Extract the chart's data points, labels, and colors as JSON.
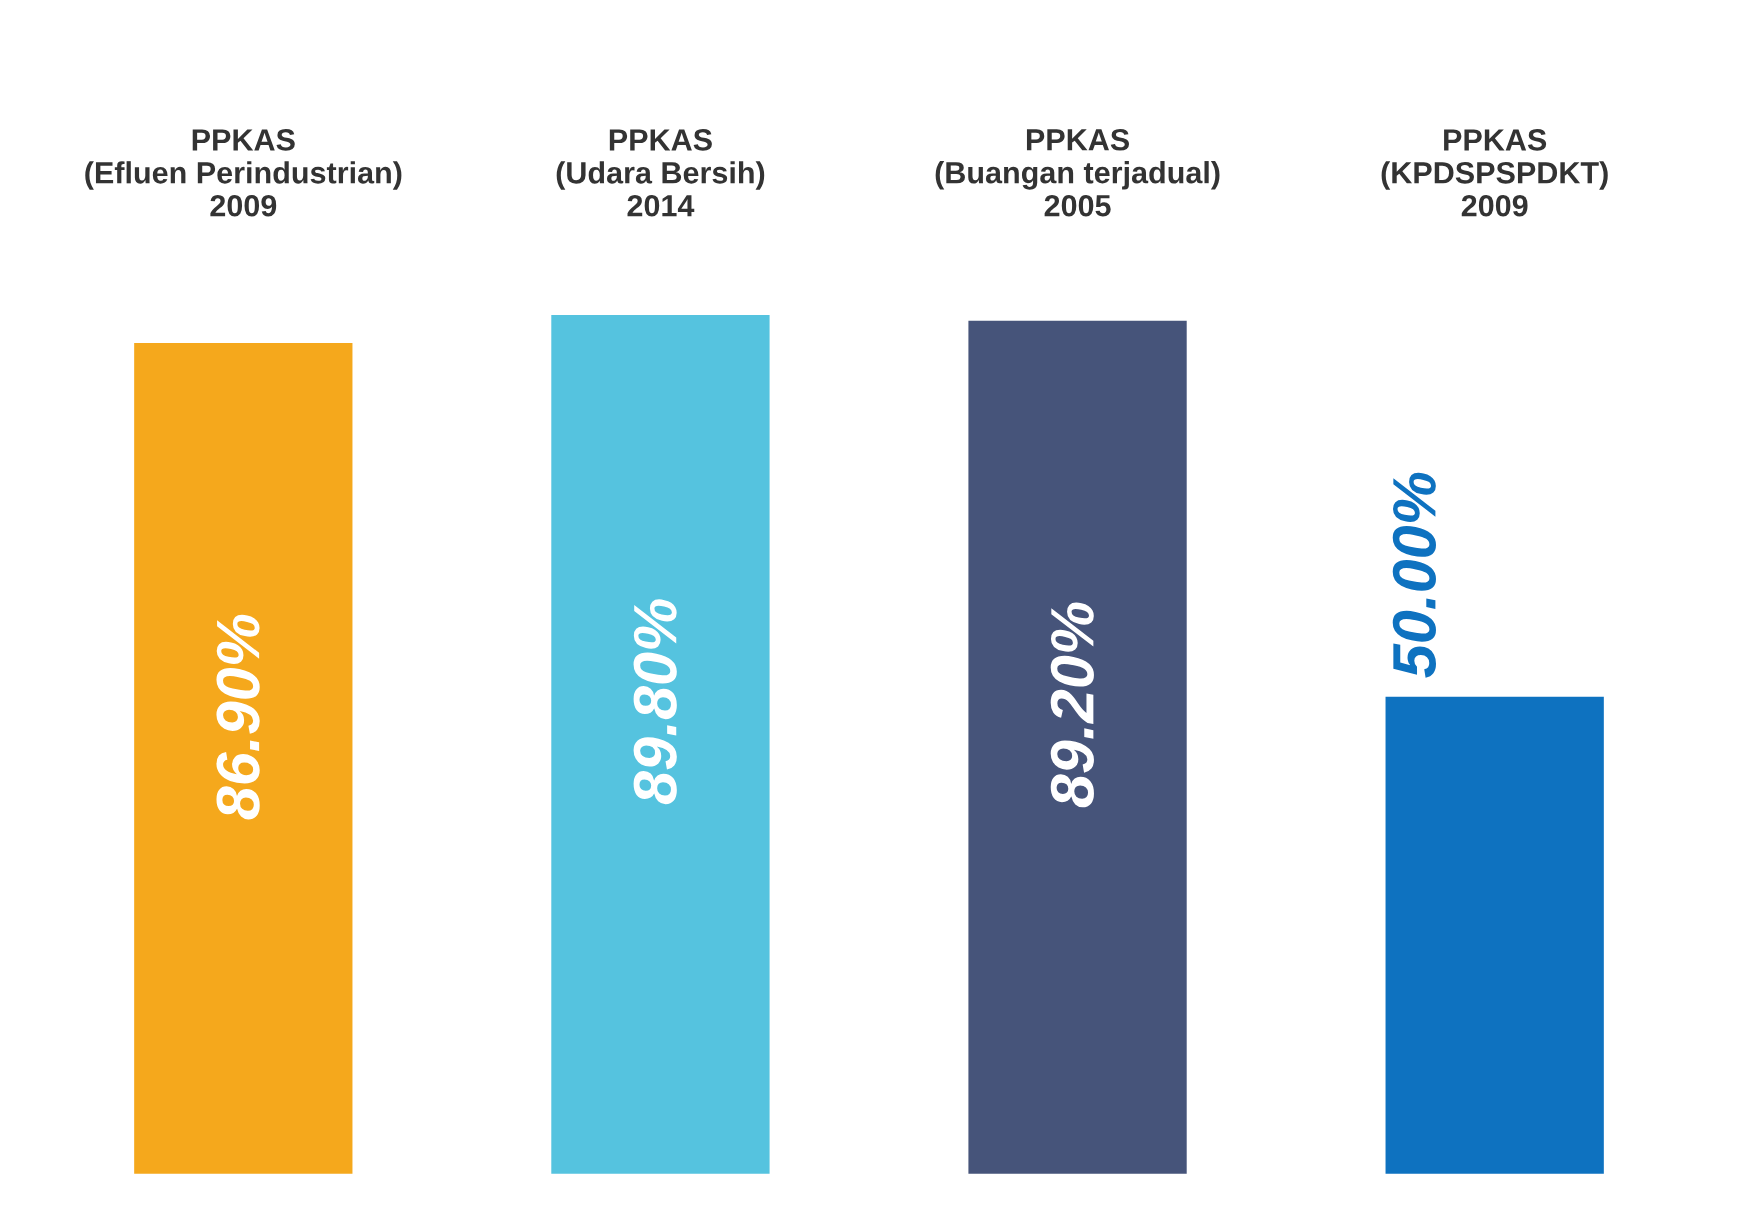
{
  "chart_data": {
    "type": "bar",
    "categories": [
      "PPKAS\n(Efluen Perindustrian)\n2009",
      "PPKAS\n(Udara Bersih)\n2014",
      "PPKAS\n(Buangan terjadual)\n2005",
      "PPKAS\n(KPDSPSPDKT)\n2009"
    ],
    "values": [
      86.9,
      89.8,
      89.2,
      50.0
    ],
    "value_labels": [
      "86.90%",
      "89.80%",
      "89.20%",
      "50.00%"
    ],
    "colors": [
      "#f5a81c",
      "#55c3df",
      "#46547a",
      "#0e72c0"
    ],
    "grid": false
  }
}
